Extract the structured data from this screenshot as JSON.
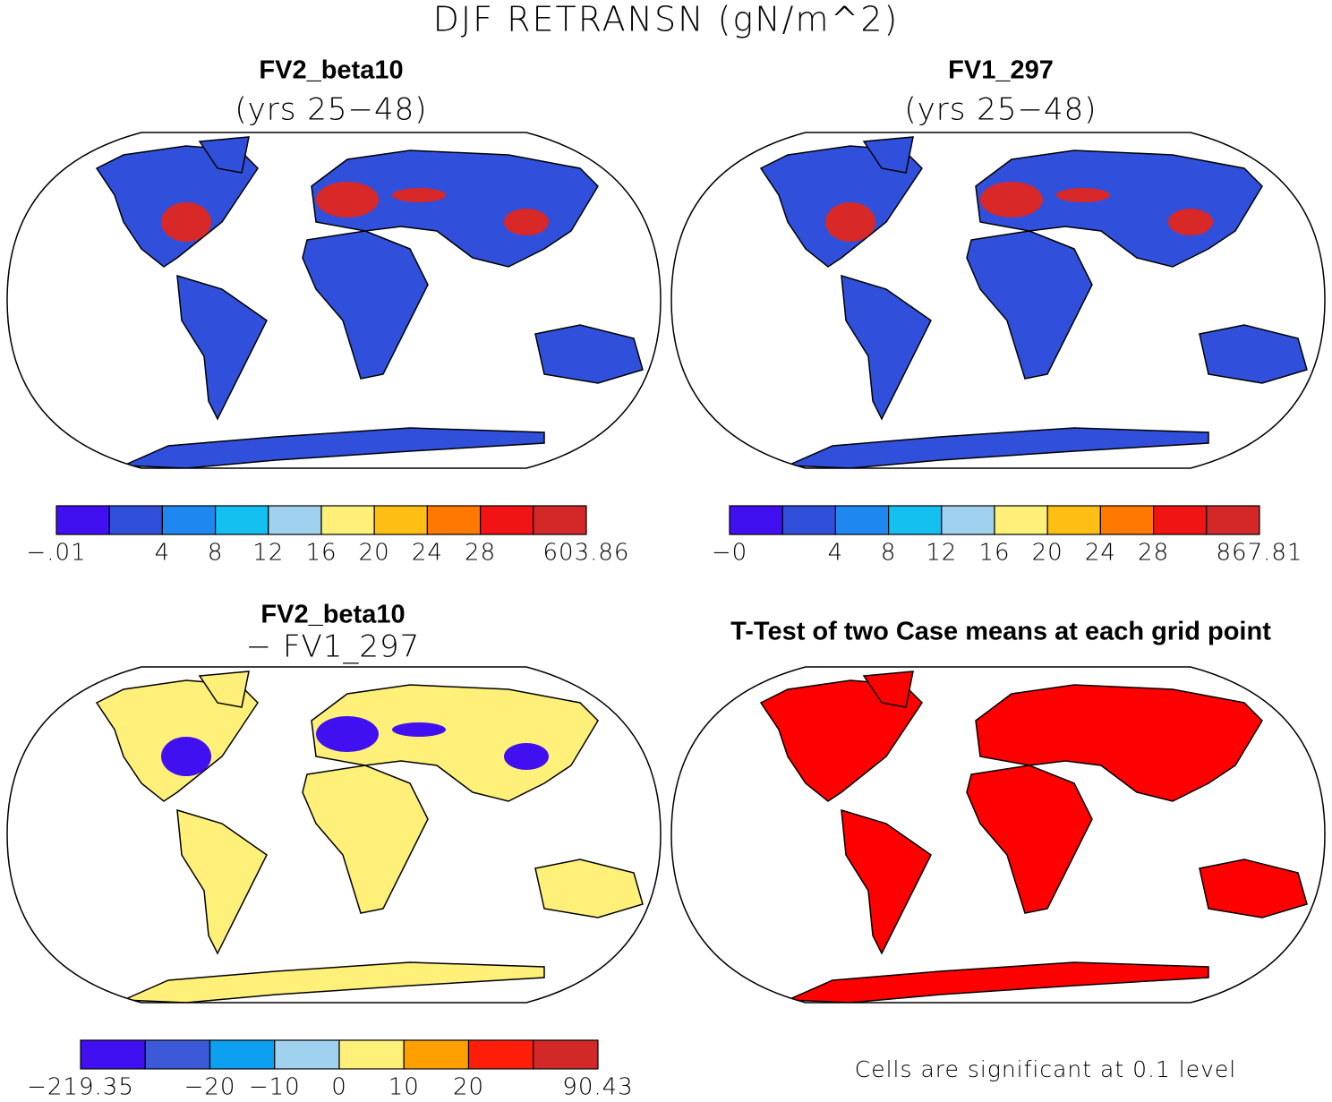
{
  "title": "DJF RETRANSN (gN/m^2)",
  "panels": [
    {
      "title": "FV2_beta10",
      "subtitle": "(yrs 25−48)",
      "land_color": "#3050dc",
      "patch_color": "#d82828",
      "colorbar": {
        "colors": [
          "#4010f0",
          "#3050dc",
          "#1e88f0",
          "#14c0f0",
          "#a0d2f0",
          "#fff07a",
          "#ffbe14",
          "#ff7800",
          "#f01414",
          "#d22828"
        ],
        "labels": [
          "−.01",
          null,
          "4",
          "8",
          "12",
          "16",
          "20",
          "24",
          "28",
          null,
          "603.86"
        ]
      }
    },
    {
      "title": "FV1_297",
      "subtitle": "(yrs 25−48)",
      "land_color": "#3050dc",
      "patch_color": "#d82828",
      "colorbar": {
        "colors": [
          "#4010f0",
          "#3050dc",
          "#1e88f0",
          "#14c0f0",
          "#a0d2f0",
          "#fff07a",
          "#ffbe14",
          "#ff7800",
          "#f01414",
          "#d22828"
        ],
        "labels": [
          "−0",
          null,
          "4",
          "8",
          "12",
          "16",
          "20",
          "24",
          "28",
          null,
          "867.81"
        ]
      }
    },
    {
      "title": "FV2_beta10",
      "subtitle": "− FV1_297",
      "land_color": "#fff07a",
      "patch_color": "#4010f0",
      "colorbar": {
        "colors": [
          "#4010f0",
          "#3c5ad8",
          "#0ea0f0",
          "#a0d2f0",
          "#fff07a",
          "#ffa000",
          "#ff1e0a",
          "#d22828"
        ],
        "labels": [
          "−219.35",
          null,
          "−20",
          "−10",
          "0",
          "10",
          "20",
          null,
          "90.43"
        ]
      }
    },
    {
      "title": "T-Test of two Case means at each grid point",
      "land_color": "#ff0000",
      "note": "Cells are significant at 0.1 level"
    }
  ]
}
